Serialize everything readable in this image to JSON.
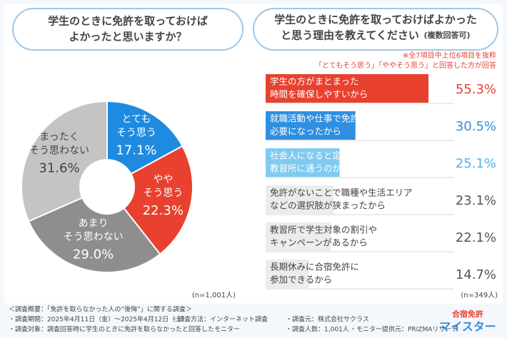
{
  "chart_data": [
    {
      "type": "donut",
      "title": [
        "学生のときに免許を取っておけば",
        "よかったと思いますか？"
      ],
      "categories": [
        [
          "とても",
          "そう思う"
        ],
        [
          "やや",
          "そう思う"
        ],
        [
          "あまり",
          "そう思わない"
        ],
        [
          "まったく",
          "そう思わない"
        ]
      ],
      "values": [
        17.1,
        22.3,
        29.0,
        31.6
      ],
      "value_labels": [
        "17.1%",
        "22.3%",
        "29.0%",
        "31.6%"
      ],
      "colors": [
        "#1f8be0",
        "#e8412f",
        "#8e8e8e",
        "#c4c4c4"
      ],
      "label_colors": [
        "#ffffff",
        "#ffffff",
        "#ffffff",
        "#444444"
      ],
      "note": "(n=1,001人)"
    },
    {
      "type": "bar",
      "title": [
        "学生のときに免許を取っておけばよかった",
        "と思う理由を教えてください"
      ],
      "subtitle": "(複数回答可)",
      "notes": [
        "※全7項目中上位6項目を抜粋",
        "「とてもそう思う」「ややそう思う」と回答した方が回答"
      ],
      "categories": [
        [
          "学生の方がまとまった",
          "時間を確保しやすいから"
        ],
        [
          "就職活動や仕事で免許が",
          "必要になったから"
        ],
        [
          "社会人になると定期的に",
          "教習所に通うのが難しくなるから"
        ],
        [
          "免許がないことで職種や生活エリア",
          "などの選択肢が狭まったから"
        ],
        [
          "教習所で学生対象の割引や",
          "キャンペーンがあるから"
        ],
        [
          "長期休みに合宿免許に",
          "参加できるから"
        ]
      ],
      "values": [
        55.3,
        30.5,
        25.1,
        23.1,
        22.1,
        14.7
      ],
      "value_labels": [
        "55.3%",
        "30.5%",
        "25.1%",
        "23.1%",
        "22.1%",
        "14.7%"
      ],
      "colors": [
        "#e8412f",
        "#2f8fe0",
        "#7fcaf0",
        "#ececec",
        "#ececec",
        "#ececec"
      ],
      "text_colors": [
        "#ffffff",
        "#ffffff",
        "#ffffff",
        "#444444",
        "#444444",
        "#444444"
      ],
      "label_colors": [
        "#e8412f",
        "#2f8fe0",
        "#4fb3e8",
        "#555555",
        "#555555",
        "#555555"
      ],
      "note": "(n=349人)"
    }
  ],
  "footer": [
    "＜調査概要：「免許を取らなかった人の“後悔”」に関する調査＞",
    "・調査期間：2025年4月11日（金）～2025年4月12日（土）",
    "・調査方法：インターネット調査",
    "・調査元：株式会社サクラス",
    "・調査対象：調査回答時に学生のときに免許を取らなかったと回答したモニター",
    "・調査人数：1,001人",
    "・モニター提供元：PRIZMAリサーチ"
  ],
  "logo": [
    "合宿免許",
    "マイスター"
  ]
}
